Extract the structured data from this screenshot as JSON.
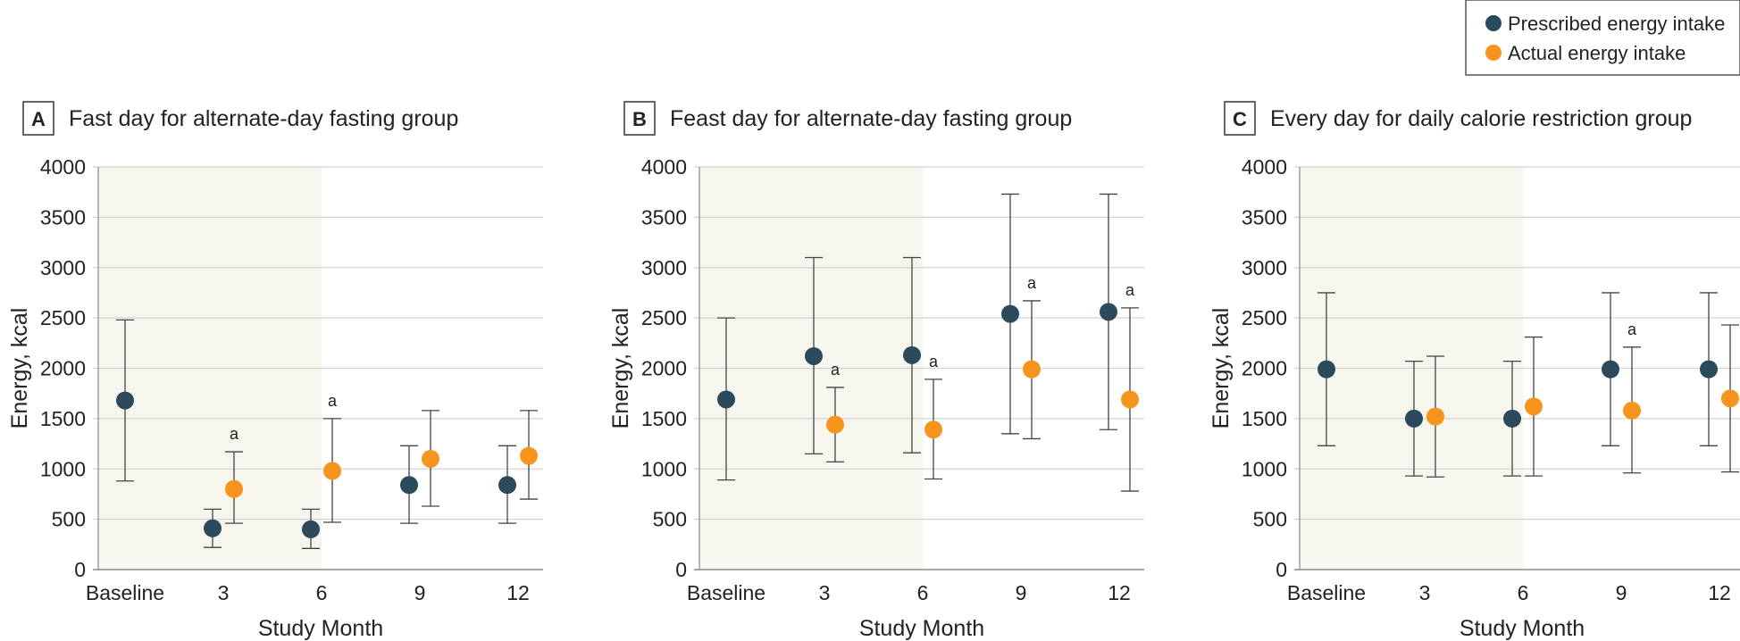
{
  "legend": {
    "items": [
      {
        "label": "Prescribed energy intake",
        "color": "#2b4b5c"
      },
      {
        "label": "Actual energy intake",
        "color": "#f7941d"
      }
    ],
    "placement": "top-right"
  },
  "colors": {
    "prescribed": "#2b4b5c",
    "actual": "#f7941d",
    "shade": "#f6f5ee",
    "grid": "#d4d4d4",
    "errorbar": "#444444"
  },
  "chart_data": [
    {
      "type": "scatter",
      "panel_letter": "A",
      "title": "Fast day for alternate-day fasting group",
      "xlabel": "Study Month",
      "ylabel": "Energy, kcal",
      "categories": [
        "Baseline",
        "3",
        "6",
        "9",
        "12"
      ],
      "ylim": [
        0,
        4000
      ],
      "yticks": [
        0,
        500,
        1000,
        1500,
        2000,
        2500,
        3000,
        3500,
        4000
      ],
      "grid": true,
      "shaded_categories": [
        "Baseline",
        "3"
      ],
      "series": [
        {
          "name": "Prescribed energy intake",
          "points": [
            {
              "x": "Baseline",
              "y": 1680,
              "low": 880,
              "high": 2480
            },
            {
              "x": "3",
              "y": 410,
              "low": 220,
              "high": 600
            },
            {
              "x": "6",
              "y": 400,
              "low": 210,
              "high": 600
            },
            {
              "x": "9",
              "y": 840,
              "low": 460,
              "high": 1230
            },
            {
              "x": "12",
              "y": 840,
              "low": 460,
              "high": 1230
            }
          ]
        },
        {
          "name": "Actual energy intake",
          "points": [
            {
              "x": "3",
              "y": 800,
              "low": 460,
              "high": 1170,
              "annotation": "a"
            },
            {
              "x": "6",
              "y": 980,
              "low": 470,
              "high": 1500,
              "annotation": "a"
            },
            {
              "x": "9",
              "y": 1100,
              "low": 630,
              "high": 1580
            },
            {
              "x": "12",
              "y": 1130,
              "low": 700,
              "high": 1580
            }
          ]
        }
      ]
    },
    {
      "type": "scatter",
      "panel_letter": "B",
      "title": "Feast day for alternate-day fasting group",
      "xlabel": "Study Month",
      "ylabel": "Energy, kcal",
      "categories": [
        "Baseline",
        "3",
        "6",
        "9",
        "12"
      ],
      "ylim": [
        0,
        4000
      ],
      "yticks": [
        0,
        500,
        1000,
        1500,
        2000,
        2500,
        3000,
        3500,
        4000
      ],
      "grid": true,
      "shaded_categories": [
        "Baseline",
        "3"
      ],
      "series": [
        {
          "name": "Prescribed energy intake",
          "points": [
            {
              "x": "Baseline",
              "y": 1690,
              "low": 890,
              "high": 2500
            },
            {
              "x": "3",
              "y": 2120,
              "low": 1150,
              "high": 3100
            },
            {
              "x": "6",
              "y": 2130,
              "low": 1160,
              "high": 3100
            },
            {
              "x": "9",
              "y": 2540,
              "low": 1350,
              "high": 3730
            },
            {
              "x": "12",
              "y": 2560,
              "low": 1390,
              "high": 3730
            }
          ]
        },
        {
          "name": "Actual energy intake",
          "points": [
            {
              "x": "3",
              "y": 1440,
              "low": 1070,
              "high": 1810,
              "annotation": "a"
            },
            {
              "x": "6",
              "y": 1390,
              "low": 900,
              "high": 1890,
              "annotation": "a"
            },
            {
              "x": "9",
              "y": 1990,
              "low": 1300,
              "high": 2670,
              "annotation": "a"
            },
            {
              "x": "12",
              "y": 1690,
              "low": 780,
              "high": 2600,
              "annotation": "a"
            }
          ]
        }
      ]
    },
    {
      "type": "scatter",
      "panel_letter": "C",
      "title": "Every day for daily calorie restriction group",
      "xlabel": "Study Month",
      "ylabel": "Energy, kcal",
      "categories": [
        "Baseline",
        "3",
        "6",
        "9",
        "12"
      ],
      "ylim": [
        0,
        4000
      ],
      "yticks": [
        0,
        500,
        1000,
        1500,
        2000,
        2500,
        3000,
        3500,
        4000
      ],
      "grid": true,
      "shaded_categories": [
        "Baseline",
        "3"
      ],
      "series": [
        {
          "name": "Prescribed energy intake",
          "points": [
            {
              "x": "Baseline",
              "y": 1990,
              "low": 1230,
              "high": 2750
            },
            {
              "x": "3",
              "y": 1500,
              "low": 930,
              "high": 2070
            },
            {
              "x": "6",
              "y": 1500,
              "low": 930,
              "high": 2070
            },
            {
              "x": "9",
              "y": 1990,
              "low": 1230,
              "high": 2750
            },
            {
              "x": "12",
              "y": 1990,
              "low": 1230,
              "high": 2750
            }
          ]
        },
        {
          "name": "Actual energy intake",
          "points": [
            {
              "x": "3",
              "y": 1520,
              "low": 920,
              "high": 2120
            },
            {
              "x": "6",
              "y": 1620,
              "low": 930,
              "high": 2310
            },
            {
              "x": "9",
              "y": 1580,
              "low": 960,
              "high": 2210,
              "annotation": "a"
            },
            {
              "x": "12",
              "y": 1700,
              "low": 970,
              "high": 2430
            }
          ]
        }
      ]
    }
  ]
}
